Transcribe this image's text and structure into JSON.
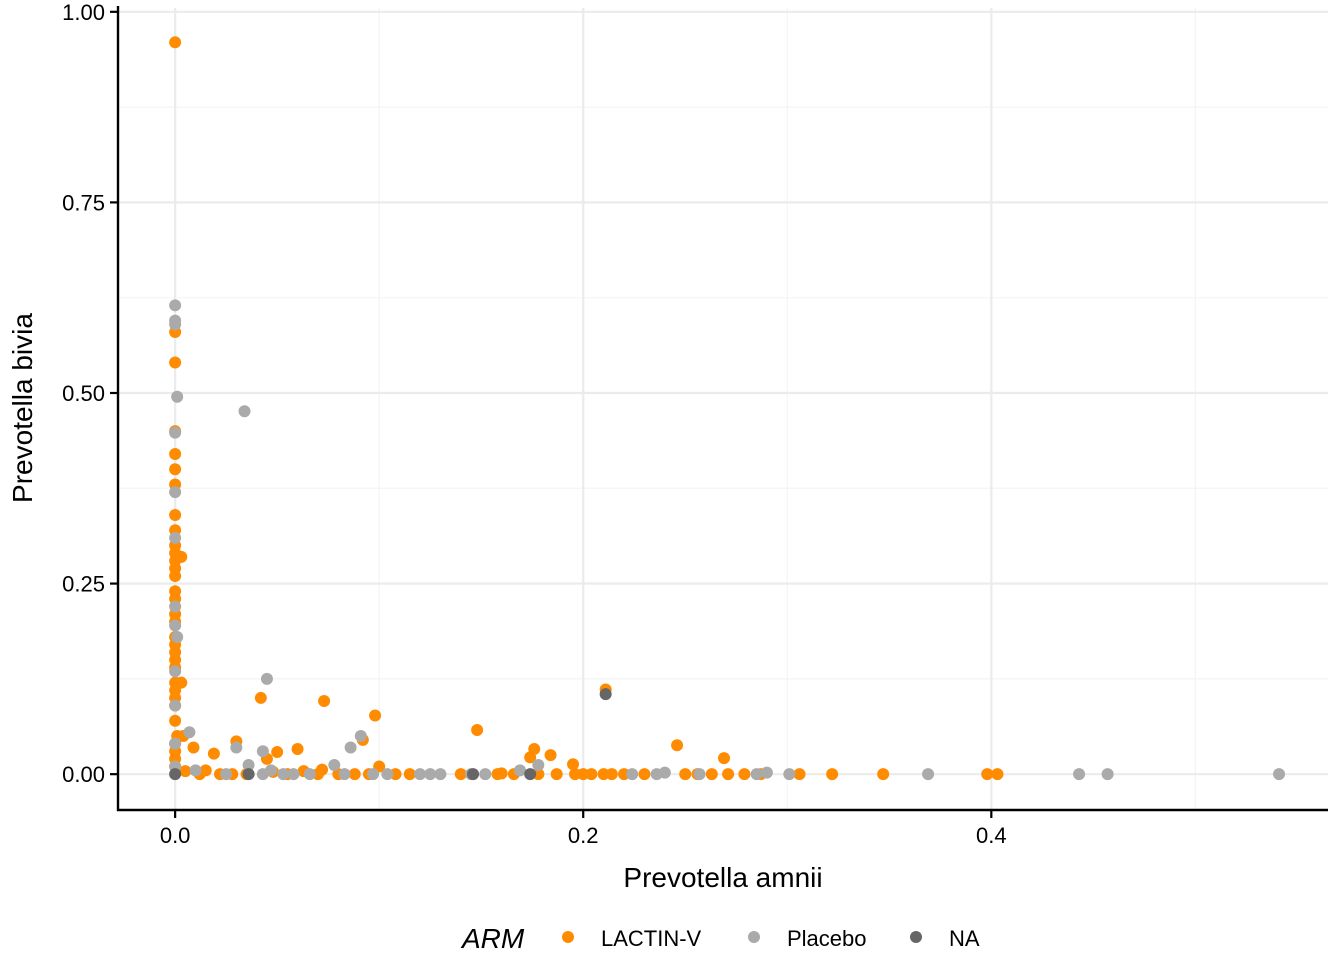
{
  "chart_data": {
    "type": "scatter",
    "title": "",
    "xlabel": "Prevotella amnii",
    "ylabel": "Prevotella bivia",
    "xlim": [
      -0.028,
      0.565
    ],
    "ylim": [
      -0.047,
      1.005
    ],
    "x_ticks": [
      0.0,
      0.2,
      0.4
    ],
    "x_tick_labels": [
      "0.0",
      "0.2",
      "0.4"
    ],
    "y_ticks": [
      0.0,
      0.25,
      0.5,
      0.75,
      1.0
    ],
    "y_tick_labels": [
      "0.00",
      "0.25",
      "0.50",
      "0.75",
      "1.00"
    ],
    "grid": true,
    "legend": {
      "title": "ARM",
      "position": "bottom"
    },
    "series": [
      {
        "name": "LACTIN-V",
        "color": "#FF8C00",
        "points": [
          [
            0.0,
            0.96
          ],
          [
            0.0,
            0.58
          ],
          [
            0.0,
            0.54
          ],
          [
            0.0,
            0.45
          ],
          [
            0.0,
            0.42
          ],
          [
            0.0,
            0.4
          ],
          [
            0.0,
            0.38
          ],
          [
            0.0,
            0.34
          ],
          [
            0.0,
            0.32
          ],
          [
            0.0,
            0.3
          ],
          [
            0.0,
            0.29
          ],
          [
            0.003,
            0.285
          ],
          [
            0.0,
            0.28
          ],
          [
            0.0,
            0.27
          ],
          [
            0.0,
            0.26
          ],
          [
            0.0,
            0.24
          ],
          [
            0.0,
            0.23
          ],
          [
            0.0,
            0.21
          ],
          [
            0.0,
            0.2
          ],
          [
            0.0,
            0.18
          ],
          [
            0.0,
            0.17
          ],
          [
            0.0,
            0.16
          ],
          [
            0.0,
            0.15
          ],
          [
            0.0,
            0.14
          ],
          [
            0.0,
            0.12
          ],
          [
            0.003,
            0.12
          ],
          [
            0.0,
            0.11
          ],
          [
            0.0,
            0.1
          ],
          [
            0.0,
            0.09
          ],
          [
            0.0,
            0.07
          ],
          [
            0.001,
            0.05
          ],
          [
            0.004,
            0.05
          ],
          [
            0.0,
            0.04
          ],
          [
            0.009,
            0.035
          ],
          [
            0.0,
            0.03
          ],
          [
            0.0,
            0.02
          ],
          [
            0.0,
            0.01
          ],
          [
            0.019,
            0.027
          ],
          [
            0.03,
            0.043
          ],
          [
            0.042,
            0.1
          ],
          [
            0.045,
            0.02
          ],
          [
            0.05,
            0.029
          ],
          [
            0.06,
            0.033
          ],
          [
            0.073,
            0.096
          ],
          [
            0.098,
            0.077
          ],
          [
            0.092,
            0.045
          ],
          [
            0.148,
            0.058
          ],
          [
            0.176,
            0.033
          ],
          [
            0.174,
            0.022
          ],
          [
            0.184,
            0.025
          ],
          [
            0.195,
            0.013
          ],
          [
            0.211,
            0.111
          ],
          [
            0.246,
            0.038
          ],
          [
            0.269,
            0.021
          ],
          [
            0.005,
            0.004
          ],
          [
            0.012,
            0.0
          ],
          [
            0.015,
            0.005
          ],
          [
            0.022,
            0.0
          ],
          [
            0.028,
            0.0
          ],
          [
            0.035,
            0.0
          ],
          [
            0.048,
            0.003
          ],
          [
            0.055,
            0.0
          ],
          [
            0.063,
            0.004
          ],
          [
            0.07,
            0.0
          ],
          [
            0.072,
            0.006
          ],
          [
            0.08,
            0.0
          ],
          [
            0.088,
            0.0
          ],
          [
            0.095,
            0.0
          ],
          [
            0.1,
            0.01
          ],
          [
            0.108,
            0.0
          ],
          [
            0.115,
            0.0
          ],
          [
            0.14,
            0.0
          ],
          [
            0.158,
            0.0
          ],
          [
            0.16,
            0.001
          ],
          [
            0.166,
            0.0
          ],
          [
            0.178,
            0.0
          ],
          [
            0.187,
            0.0
          ],
          [
            0.196,
            0.0
          ],
          [
            0.2,
            0.0
          ],
          [
            0.204,
            0.0
          ],
          [
            0.21,
            0.0
          ],
          [
            0.214,
            0.0
          ],
          [
            0.22,
            0.0
          ],
          [
            0.23,
            0.0
          ],
          [
            0.25,
            0.0
          ],
          [
            0.256,
            0.0
          ],
          [
            0.263,
            0.0
          ],
          [
            0.271,
            0.0
          ],
          [
            0.279,
            0.0
          ],
          [
            0.287,
            0.0
          ],
          [
            0.306,
            0.0
          ],
          [
            0.322,
            0.0
          ],
          [
            0.347,
            0.0
          ],
          [
            0.398,
            0.0
          ],
          [
            0.403,
            0.0
          ]
        ]
      },
      {
        "name": "Placebo",
        "color": "#AAAAAA",
        "points": [
          [
            0.0,
            0.615
          ],
          [
            0.0,
            0.595
          ],
          [
            0.0,
            0.59
          ],
          [
            0.001,
            0.495
          ],
          [
            0.034,
            0.476
          ],
          [
            0.0,
            0.448
          ],
          [
            0.0,
            0.37
          ],
          [
            0.0,
            0.31
          ],
          [
            0.0,
            0.22
          ],
          [
            0.0,
            0.195
          ],
          [
            0.001,
            0.18
          ],
          [
            0.0,
            0.135
          ],
          [
            0.045,
            0.125
          ],
          [
            0.0,
            0.09
          ],
          [
            0.007,
            0.055
          ],
          [
            0.091,
            0.05
          ],
          [
            0.0,
            0.04
          ],
          [
            0.03,
            0.035
          ],
          [
            0.043,
            0.03
          ],
          [
            0.086,
            0.035
          ],
          [
            0.178,
            0.012
          ],
          [
            0.0,
            0.01
          ],
          [
            0.01,
            0.005
          ],
          [
            0.025,
            0.0
          ],
          [
            0.036,
            0.012
          ],
          [
            0.043,
            0.0
          ],
          [
            0.047,
            0.005
          ],
          [
            0.053,
            0.0
          ],
          [
            0.058,
            0.0
          ],
          [
            0.066,
            0.0
          ],
          [
            0.078,
            0.012
          ],
          [
            0.083,
            0.0
          ],
          [
            0.097,
            0.0
          ],
          [
            0.104,
            0.0
          ],
          [
            0.12,
            0.0
          ],
          [
            0.125,
            0.0
          ],
          [
            0.13,
            0.0
          ],
          [
            0.145,
            0.0
          ],
          [
            0.152,
            0.0
          ],
          [
            0.169,
            0.005
          ],
          [
            0.224,
            0.0
          ],
          [
            0.236,
            0.0
          ],
          [
            0.24,
            0.002
          ],
          [
            0.257,
            0.0
          ],
          [
            0.285,
            0.0
          ],
          [
            0.29,
            0.002
          ],
          [
            0.301,
            0.0
          ],
          [
            0.369,
            0.0
          ],
          [
            0.443,
            0.0
          ],
          [
            0.457,
            0.0
          ],
          [
            0.541,
            0.0
          ]
        ]
      },
      {
        "name": "NA",
        "color": "#666666",
        "points": [
          [
            0.0,
            0.0
          ],
          [
            0.036,
            0.0
          ],
          [
            0.146,
            0.0
          ],
          [
            0.174,
            0.0
          ],
          [
            0.211,
            0.105
          ]
        ]
      }
    ]
  }
}
